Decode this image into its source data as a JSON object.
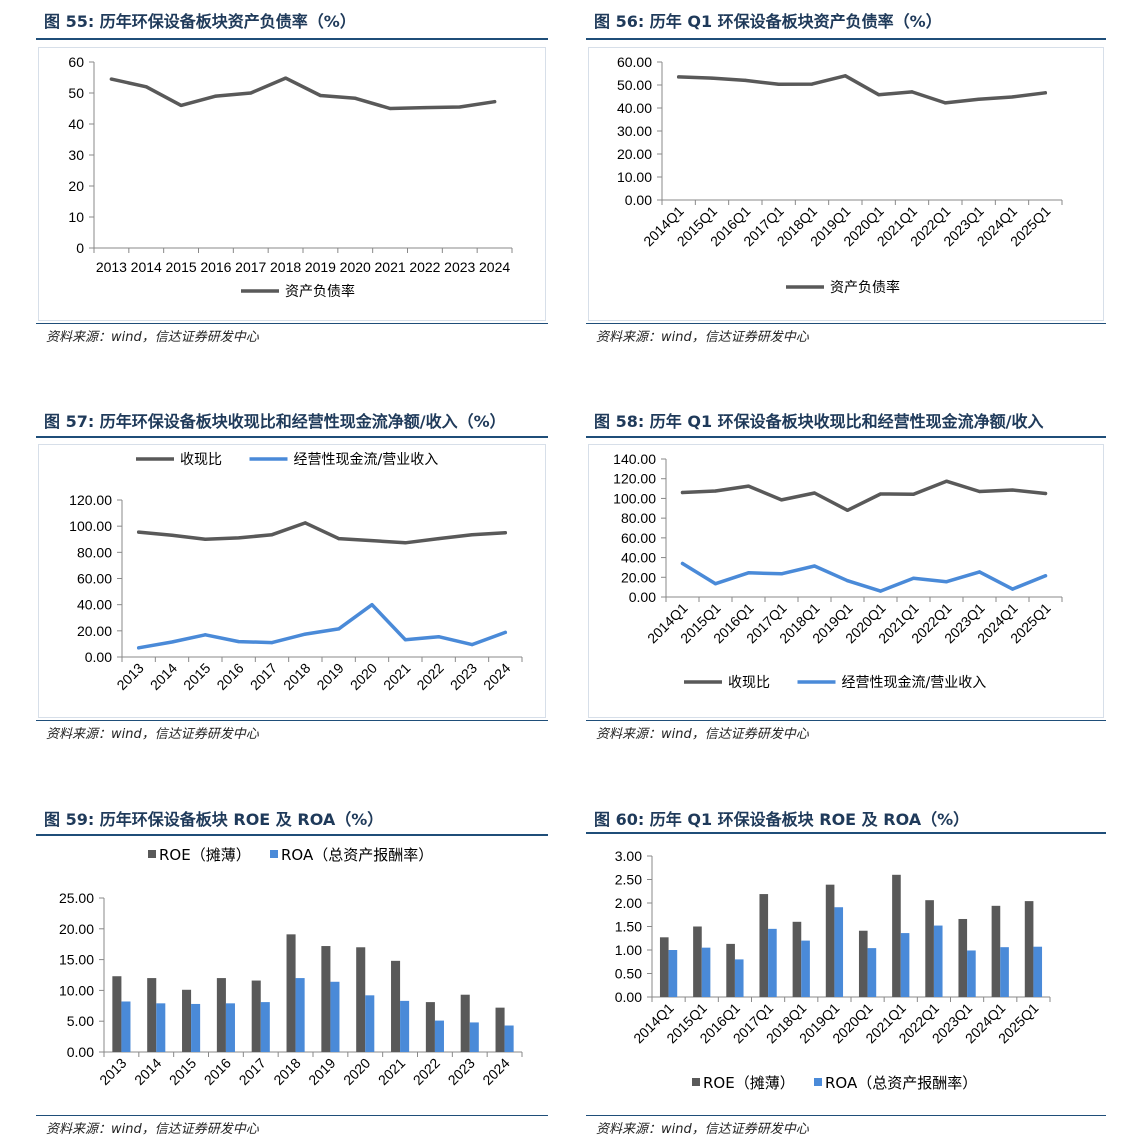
{
  "panels": [
    {
      "title": "图  55:  历年环保设备板块资产负债率（%）",
      "source": "资料来源：wind，信达证券研发中心",
      "chart_data": {
        "type": "line",
        "title": "",
        "xlabel": "",
        "ylabel": "",
        "categories": [
          "2013",
          "2014",
          "2015",
          "2016",
          "2017",
          "2018",
          "2019",
          "2020",
          "2021",
          "2022",
          "2023",
          "2024"
        ],
        "ylim": [
          0,
          60
        ],
        "yticks": [
          "0",
          "10",
          "20",
          "30",
          "40",
          "50",
          "60"
        ],
        "grid": false,
        "legend_position": "bottom",
        "series": [
          {
            "name": "资产负债率",
            "color": "#595959",
            "values": [
              54.5,
              52.0,
              46.0,
              49.0,
              50.0,
              54.8,
              49.2,
              48.3,
              45.0,
              45.3,
              45.5,
              47.2
            ]
          }
        ]
      }
    },
    {
      "title": "图  56:  历年 Q1 环保设备板块资产负债率（%）",
      "source": "资料来源：wind，信达证券研发中心",
      "chart_data": {
        "type": "line",
        "title": "",
        "xlabel": "",
        "ylabel": "",
        "categories": [
          "2014Q1",
          "2015Q1",
          "2016Q1",
          "2017Q1",
          "2018Q1",
          "2019Q1",
          "2020Q1",
          "2021Q1",
          "2022Q1",
          "2023Q1",
          "2024Q1",
          "2025Q1"
        ],
        "ylim": [
          0,
          60
        ],
        "yticks": [
          "0.00",
          "10.00",
          "20.00",
          "30.00",
          "40.00",
          "50.00",
          "60.00"
        ],
        "grid": false,
        "legend_position": "bottom",
        "series": [
          {
            "name": "资产负债率",
            "color": "#595959",
            "values": [
              53.5,
              53.0,
              52.0,
              50.3,
              50.4,
              54.0,
              45.8,
              47.0,
              42.2,
              43.8,
              44.8,
              46.6
            ]
          }
        ]
      }
    },
    {
      "title": "图  57:  历年环保设备板块收现比和经营性现金流净额/收入（%）",
      "source": "资料来源：wind，信达证券研发中心",
      "chart_data": {
        "type": "line",
        "title": "",
        "xlabel": "",
        "ylabel": "",
        "categories": [
          "2013",
          "2014",
          "2015",
          "2016",
          "2017",
          "2018",
          "2019",
          "2020",
          "2021",
          "2022",
          "2023",
          "2024"
        ],
        "ylim": [
          0,
          120
        ],
        "yticks": [
          "0.00",
          "20.00",
          "40.00",
          "60.00",
          "80.00",
          "100.00",
          "120.00"
        ],
        "grid": false,
        "legend_position": "top",
        "series": [
          {
            "name": "收现比",
            "color": "#595959",
            "values": [
              95.5,
              93.0,
              90.0,
              91.0,
              93.5,
              102.5,
              90.5,
              89.0,
              87.3,
              90.5,
              93.5,
              95.0
            ]
          },
          {
            "name": "经营性现金流/营业收入",
            "color": "#4a8ad8",
            "values": [
              7.0,
              11.5,
              17.0,
              11.8,
              11.0,
              17.5,
              21.5,
              40.0,
              13.2,
              15.5,
              9.5,
              18.8
            ]
          }
        ]
      }
    },
    {
      "title": "图  58:  历年 Q1 环保设备板块收现比和经营性现金流净额/收入",
      "source": "资料来源：wind，信达证券研发中心",
      "chart_data": {
        "type": "line",
        "title": "",
        "xlabel": "",
        "ylabel": "",
        "categories": [
          "2014Q1",
          "2015Q1",
          "2016Q1",
          "2017Q1",
          "2018Q1",
          "2019Q1",
          "2020Q1",
          "2021Q1",
          "2022Q1",
          "2023Q1",
          "2024Q1",
          "2025Q1"
        ],
        "ylim": [
          0,
          140
        ],
        "yticks": [
          "0.00",
          "20.00",
          "40.00",
          "60.00",
          "80.00",
          "100.00",
          "120.00",
          "140.00"
        ],
        "grid": false,
        "legend_position": "bottom",
        "series": [
          {
            "name": "收现比",
            "color": "#595959",
            "values": [
              106.0,
              107.5,
              112.5,
              98.5,
              105.5,
              88.0,
              104.5,
              104.3,
              117.5,
              107.0,
              108.5,
              105.0
            ]
          },
          {
            "name": "经营性现金流/营业收入",
            "color": "#4a8ad8",
            "values": [
              34.0,
              13.5,
              24.5,
              23.5,
              31.5,
              16.5,
              6.0,
              19.0,
              15.5,
              25.5,
              8.0,
              21.5
            ]
          }
        ]
      }
    },
    {
      "title": "图  59:  历年环保设备板块 ROE 及 ROA（%）",
      "source": "资料来源：wind，信达证券研发中心",
      "chart_data": {
        "type": "bar",
        "title": "",
        "xlabel": "",
        "ylabel": "",
        "categories": [
          "2013",
          "2014",
          "2015",
          "2016",
          "2017",
          "2018",
          "2019",
          "2020",
          "2021",
          "2022",
          "2023",
          "2024"
        ],
        "ylim": [
          0,
          25
        ],
        "yticks": [
          "0.00",
          "5.00",
          "10.00",
          "15.00",
          "20.00",
          "25.00"
        ],
        "grid": false,
        "legend_position": "top",
        "series": [
          {
            "name": "ROE（摊薄）",
            "color": "#595959",
            "values": [
              12.3,
              12.0,
              10.1,
              12.0,
              11.6,
              19.1,
              17.2,
              17.0,
              14.8,
              8.1,
              9.3,
              7.2
            ]
          },
          {
            "name": "ROA（总资产报酬率）",
            "color": "#4a8ad8",
            "values": [
              8.2,
              7.9,
              7.8,
              7.9,
              8.1,
              12.0,
              11.4,
              9.2,
              8.3,
              5.1,
              4.8,
              4.3
            ]
          }
        ]
      }
    },
    {
      "title": "图  60:  历年 Q1 环保设备板块 ROE 及 ROA（%）",
      "source": "资料来源：wind，信达证券研发中心",
      "chart_data": {
        "type": "bar",
        "title": "",
        "xlabel": "",
        "ylabel": "",
        "categories": [
          "2014Q1",
          "2015Q1",
          "2016Q1",
          "2017Q1",
          "2018Q1",
          "2019Q1",
          "2020Q1",
          "2021Q1",
          "2022Q1",
          "2023Q1",
          "2024Q1",
          "2025Q1"
        ],
        "ylim": [
          0,
          3
        ],
        "yticks": [
          "0.00",
          "0.50",
          "1.00",
          "1.50",
          "2.00",
          "2.50",
          "3.00"
        ],
        "grid": false,
        "legend_position": "bottom",
        "series": [
          {
            "name": "ROE（摊薄）",
            "color": "#595959",
            "values": [
              1.27,
              1.5,
              1.13,
              2.19,
              1.6,
              2.39,
              1.41,
              2.6,
              2.06,
              1.66,
              1.94,
              2.04
            ]
          },
          {
            "name": "ROA（总资产报酬率）",
            "color": "#4a8ad8",
            "values": [
              1.0,
              1.05,
              0.8,
              1.45,
              1.2,
              1.91,
              1.04,
              1.36,
              1.52,
              0.99,
              1.06,
              1.07
            ]
          }
        ]
      }
    }
  ]
}
